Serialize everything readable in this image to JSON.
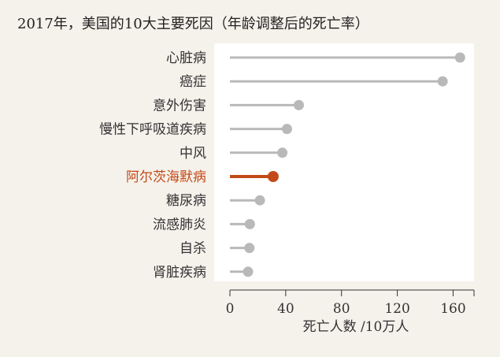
{
  "chart_data": {
    "type": "lollipop",
    "title": "2017年，美国的10大主要死因（年龄调整后的死亡率）",
    "xlabel": "死亡人数 /10万人",
    "xlim": [
      0,
      175
    ],
    "xticks": [
      0,
      40,
      80,
      120,
      160
    ],
    "categories": [
      "心脏病",
      "癌症",
      "意外伤害",
      "慢性下呼吸道疾病",
      "中风",
      "阿尔茨海默病",
      "糖尿病",
      "流感肺炎",
      "自杀",
      "肾脏疾病"
    ],
    "values": [
      165.0,
      152.5,
      49.4,
      40.9,
      37.6,
      31.0,
      21.5,
      14.3,
      14.0,
      13.0
    ],
    "highlight": "阿尔茨海默病",
    "colors": {
      "background": "#f5f1eb",
      "plot_background": "#ffffff",
      "default": "#b9b9b9",
      "highlight": "#c24a17"
    }
  }
}
